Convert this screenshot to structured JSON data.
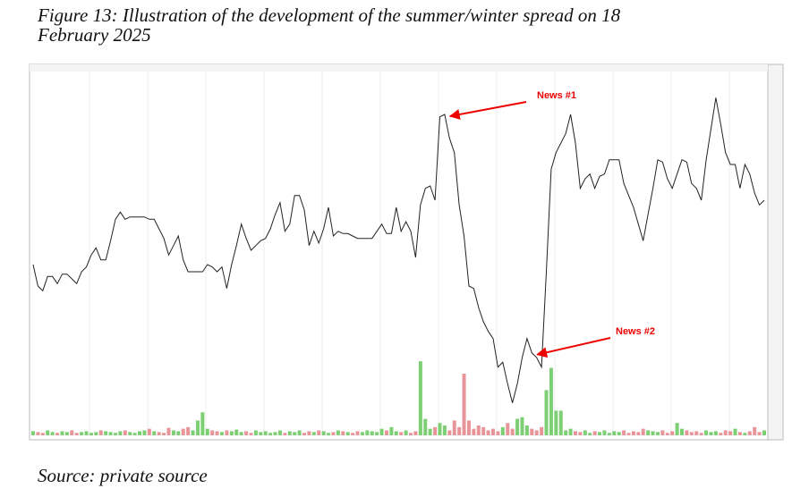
{
  "chart_data": {
    "type": "line",
    "title": "Figure 13: Illustration of the development of the summer/winter spread on 18 February 2025",
    "source": "Source: private source",
    "annotations": [
      "News #1",
      "News #2"
    ],
    "ylim": [
      2.0,
      3.5
    ],
    "y2lim": [
      0,
      100
    ],
    "line_color": "#222222",
    "up_color": "#7ccf73",
    "down_color": "#e8959a",
    "grid": true,
    "values": [
      2.69,
      2.6,
      2.58,
      2.64,
      2.64,
      2.61,
      2.65,
      2.65,
      2.63,
      2.61,
      2.66,
      2.68,
      2.73,
      2.76,
      2.71,
      2.71,
      2.79,
      2.88,
      2.91,
      2.88,
      2.89,
      2.89,
      2.89,
      2.89,
      2.88,
      2.88,
      2.84,
      2.8,
      2.73,
      2.77,
      2.81,
      2.71,
      2.66,
      2.66,
      2.66,
      2.66,
      2.69,
      2.68,
      2.66,
      2.68,
      2.59,
      2.69,
      2.77,
      2.86,
      2.8,
      2.75,
      2.77,
      2.79,
      2.8,
      2.84,
      2.9,
      2.95,
      2.83,
      2.86,
      2.98,
      2.98,
      2.92,
      2.77,
      2.83,
      2.78,
      2.84,
      2.93,
      2.81,
      2.83,
      2.82,
      2.82,
      2.81,
      2.8,
      2.8,
      2.8,
      2.8,
      2.83,
      2.86,
      2.82,
      2.82,
      2.93,
      2.83,
      2.87,
      2.83,
      2.72,
      2.94,
      3.01,
      3.02,
      2.96,
      3.31,
      3.32,
      3.22,
      3.16,
      2.94,
      2.81,
      2.6,
      2.59,
      2.51,
      2.45,
      2.41,
      2.38,
      2.26,
      2.28,
      2.19,
      2.11,
      2.19,
      2.3,
      2.38,
      2.32,
      2.3,
      2.26,
      2.66,
      3.09,
      3.16,
      3.2,
      3.24,
      3.32,
      3.2,
      3.01,
      3.05,
      3.07,
      3.01,
      3.06,
      3.07,
      3.13,
      3.13,
      3.13,
      3.03,
      2.98,
      2.93,
      2.86,
      2.79,
      2.9,
      3.01,
      3.13,
      3.12,
      3.05,
      3.01,
      3.07,
      3.13,
      3.12,
      3.03,
      3.01,
      2.96,
      3.13,
      3.26,
      3.39,
      3.28,
      3.16,
      3.11,
      3.11,
      3.01,
      3.11,
      3.07,
      2.99,
      2.94,
      2.96
    ],
    "volume": [
      5,
      4,
      3,
      6,
      4,
      3,
      5,
      4,
      6,
      3,
      4,
      5,
      3,
      4,
      6,
      5,
      4,
      3,
      5,
      6,
      4,
      3,
      5,
      6,
      8,
      5,
      4,
      3,
      9,
      6,
      5,
      8,
      10,
      6,
      18,
      28,
      8,
      6,
      5,
      4,
      6,
      5,
      7,
      4,
      5,
      3,
      6,
      4,
      5,
      3,
      4,
      6,
      3,
      5,
      4,
      6,
      3,
      5,
      4,
      6,
      5,
      3,
      4,
      6,
      5,
      4,
      3,
      5,
      4,
      6,
      5,
      4,
      8,
      6,
      10,
      5,
      4,
      6,
      3,
      5,
      90,
      20,
      8,
      10,
      15,
      12,
      6,
      18,
      10,
      75,
      18,
      8,
      12,
      10,
      6,
      8,
      5,
      10,
      15,
      8,
      20,
      22,
      12,
      8,
      6,
      10,
      55,
      82,
      30,
      30,
      6,
      8,
      5,
      4,
      6,
      3,
      5,
      4,
      6,
      3,
      5,
      4,
      6,
      3,
      5,
      4,
      8,
      6,
      5,
      4,
      6,
      3,
      5,
      15,
      8,
      6,
      4,
      5,
      3,
      6,
      4,
      5,
      3,
      6,
      5,
      8,
      4,
      3,
      5,
      10,
      4,
      6
    ]
  }
}
